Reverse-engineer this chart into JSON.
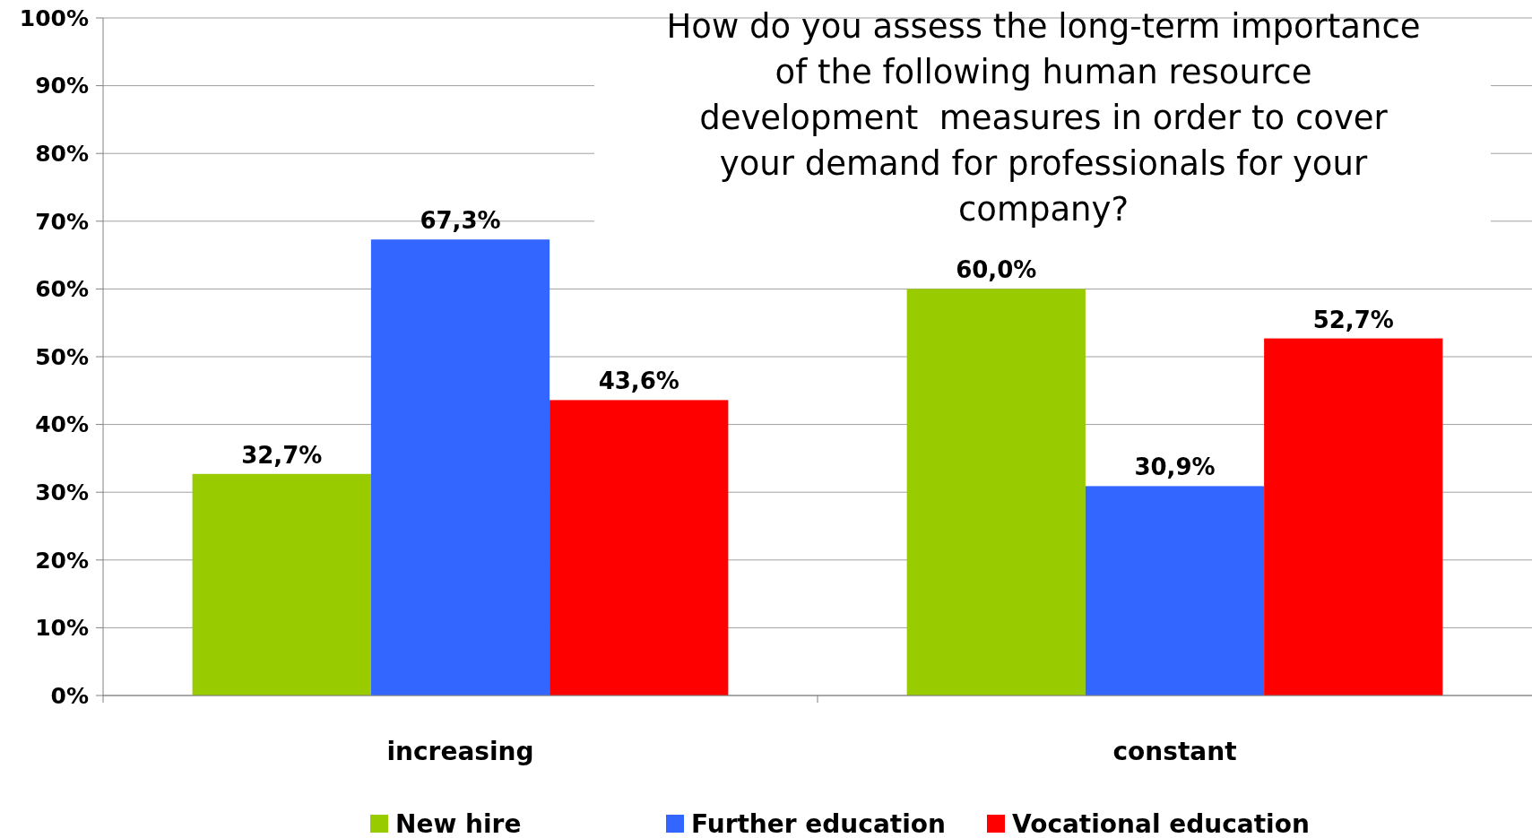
{
  "chart_data": {
    "type": "bar",
    "title": "How do you assess the long-term importance of the following human resource development  measures in order to cover your demand for professionals for your company?",
    "categories": [
      "increasing",
      "constant"
    ],
    "series": [
      {
        "name": "New hire",
        "color": "#99cc00",
        "values": [
          32.7,
          60.0
        ],
        "value_labels": [
          "32,7%",
          "60,0%"
        ]
      },
      {
        "name": "Further education",
        "color": "#3366ff",
        "values": [
          67.3,
          30.9
        ],
        "value_labels": [
          "67,3%",
          "30,9%"
        ]
      },
      {
        "name": "Vocational education",
        "color": "#ff0000",
        "values": [
          43.6,
          52.7
        ],
        "value_labels": [
          "43,6%",
          "52,7%"
        ]
      }
    ],
    "ylim": [
      0,
      100
    ],
    "yticks": [
      {
        "value": 0,
        "label": "0%"
      },
      {
        "value": 10,
        "label": "10%"
      },
      {
        "value": 20,
        "label": "20%"
      },
      {
        "value": 30,
        "label": "30%"
      },
      {
        "value": 40,
        "label": "40%"
      },
      {
        "value": 50,
        "label": "50%"
      },
      {
        "value": 60,
        "label": "60%"
      },
      {
        "value": 70,
        "label": "70%"
      },
      {
        "value": 80,
        "label": "80%"
      },
      {
        "value": 90,
        "label": "90%"
      },
      {
        "value": 100,
        "label": "100%"
      }
    ],
    "grid": "y",
    "legend": "bottom"
  }
}
